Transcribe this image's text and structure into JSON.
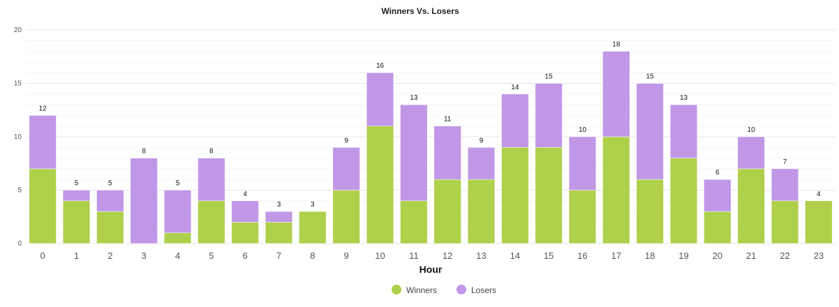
{
  "chart_data": {
    "type": "bar",
    "stacked": true,
    "title": "Winners Vs. Losers",
    "xlabel": "Hour",
    "ylabel": "",
    "ylim": [
      0,
      20
    ],
    "yticks": [
      0,
      5,
      10,
      15,
      20
    ],
    "grid": true,
    "legend_position": "bottom-center",
    "categories": [
      "0",
      "1",
      "2",
      "3",
      "4",
      "5",
      "6",
      "7",
      "8",
      "9",
      "10",
      "11",
      "12",
      "13",
      "14",
      "15",
      "16",
      "17",
      "18",
      "19",
      "20",
      "21",
      "22",
      "23"
    ],
    "series": [
      {
        "name": "Winners",
        "color": "#afd04b",
        "values": [
          7,
          4,
          3,
          0,
          1,
          4,
          2,
          2,
          3,
          5,
          11,
          4,
          6,
          6,
          9,
          9,
          5,
          10,
          6,
          8,
          3,
          7,
          4,
          4
        ]
      },
      {
        "name": "Losers",
        "color": "#c197e8",
        "values": [
          5,
          1,
          2,
          8,
          4,
          4,
          2,
          1,
          0,
          4,
          5,
          9,
          5,
          3,
          5,
          6,
          5,
          8,
          9,
          5,
          3,
          3,
          3,
          0
        ]
      }
    ],
    "totals": [
      12,
      5,
      5,
      8,
      5,
      8,
      4,
      3,
      3,
      9,
      16,
      13,
      11,
      9,
      14,
      15,
      10,
      18,
      15,
      13,
      6,
      10,
      7,
      4
    ]
  }
}
